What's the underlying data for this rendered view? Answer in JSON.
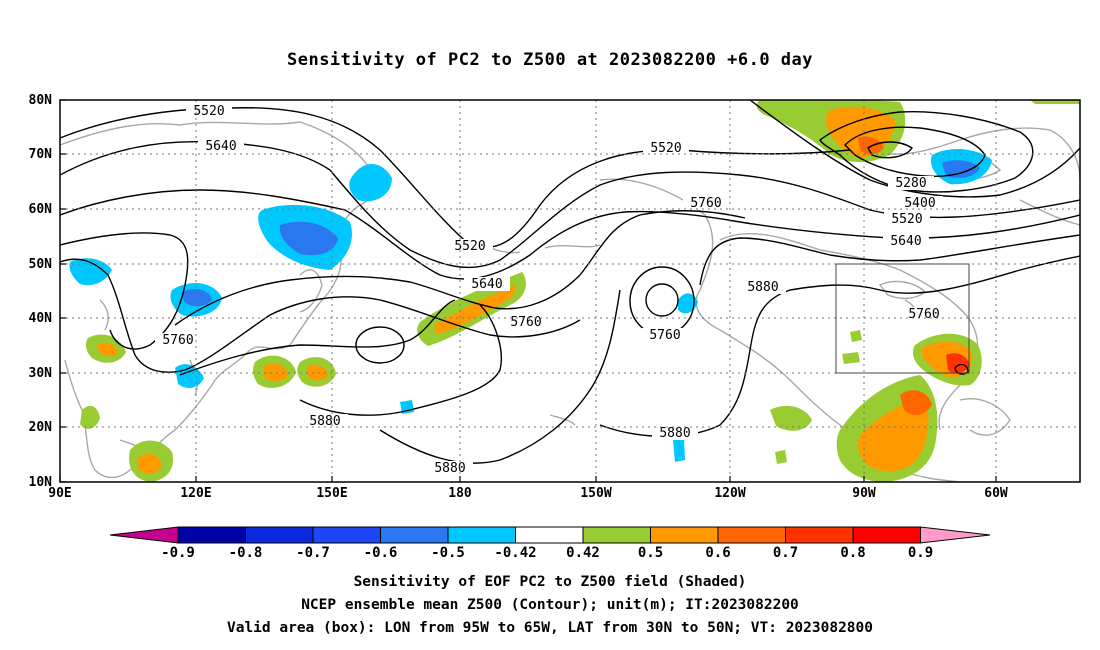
{
  "title": "Sensitivity of PC2 to Z500 at 2023082200 +6.0 day",
  "map": {
    "lat_labels": [
      "80N",
      "70N",
      "60N",
      "50N",
      "40N",
      "30N",
      "20N",
      "10N"
    ],
    "lon_labels": [
      "90E",
      "120E",
      "150E",
      "180",
      "150W",
      "120W",
      "90W",
      "60W"
    ],
    "contour_labels": [
      "5520",
      "5640",
      "5520",
      "5760",
      "5520",
      "5640",
      "5760",
      "5760",
      "5880",
      "5760",
      "5880",
      "5880",
      "5280",
      "5400",
      "5520",
      "5640",
      "5760"
    ],
    "valid_box": {
      "lon_from": "95W",
      "lon_to": "65W",
      "lat_from": "30N",
      "lat_to": "50N"
    }
  },
  "colorbar": {
    "labels": [
      "-0.9",
      "-0.8",
      "-0.7",
      "-0.6",
      "-0.5",
      "-0.42",
      "0.42",
      "0.5",
      "0.6",
      "0.7",
      "0.8",
      "0.9"
    ],
    "colors": [
      "#0000a8",
      "#0a28dc",
      "#1e46f5",
      "#2a78f0",
      "#00c8ff",
      "#ffffff",
      "#99cc33",
      "#ff9900",
      "#ff6600",
      "#ff3300",
      "#ff0000"
    ],
    "low_extend_color": "#c4008c",
    "high_extend_color": "#ff9bc8"
  },
  "footer": {
    "line1": "Sensitivity of EOF PC2 to Z500 field (Shaded)",
    "line2": "NCEP ensemble mean Z500 (Contour); unit(m); IT:2023082200",
    "line3": "Valid area (box): LON from 95W to 65W, LAT from 30N to 50N; VT: 2023082800"
  }
}
